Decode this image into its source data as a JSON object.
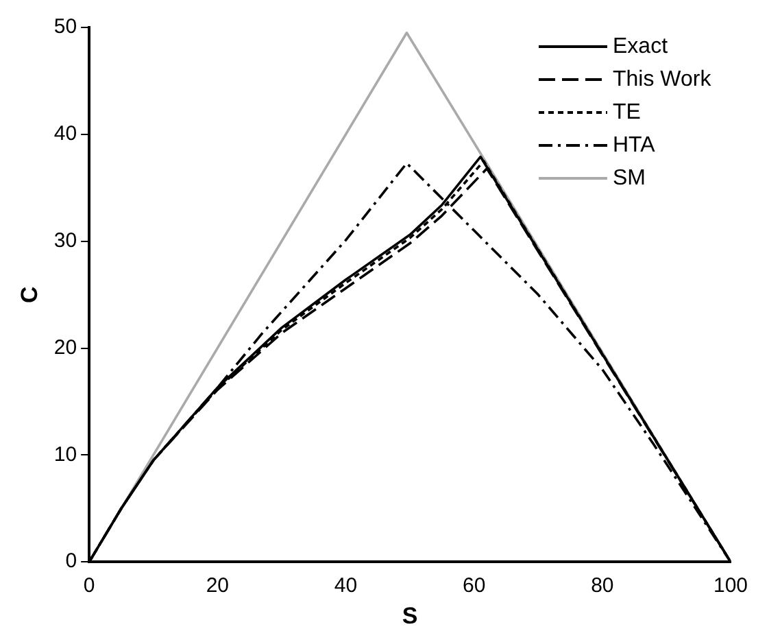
{
  "chart_data": {
    "type": "line",
    "xlabel": "S",
    "ylabel": "C",
    "xlim": [
      0,
      100
    ],
    "ylim": [
      0,
      50
    ],
    "xticks": [
      0,
      20,
      40,
      60,
      80,
      100
    ],
    "yticks": [
      0,
      10,
      20,
      30,
      40,
      50
    ],
    "grid": false,
    "legend": "top right",
    "marker": "none",
    "series": [
      {
        "name": "Exact",
        "color": "#000000",
        "line_style": "solid",
        "x": [
          0,
          5,
          10,
          20,
          30,
          40,
          50,
          55,
          61,
          100
        ],
        "values": [
          0,
          5,
          9.5,
          16.3,
          21.9,
          26.4,
          30.6,
          33.4,
          37.9,
          0
        ]
      },
      {
        "name": "This Work",
        "color": "#000000",
        "line_style": "dashed",
        "x": [
          0,
          5,
          10,
          20,
          30,
          40,
          50,
          55,
          62,
          100
        ],
        "values": [
          0,
          5,
          9.5,
          16.1,
          21.4,
          25.6,
          29.8,
          32.4,
          36.8,
          0
        ]
      },
      {
        "name": "TE",
        "color": "#000000",
        "line_style": "dotted",
        "x": [
          0,
          5,
          10,
          20,
          30,
          40,
          50,
          55,
          61.5,
          100
        ],
        "values": [
          0,
          5,
          9.5,
          16.2,
          21.7,
          26.1,
          30.3,
          33,
          37.5,
          0
        ]
      },
      {
        "name": "HTA",
        "color": "#000000",
        "line_style": "dashdot",
        "x": [
          0,
          5,
          10,
          20,
          27,
          40,
          49.5,
          60,
          70,
          80,
          88,
          100
        ],
        "values": [
          0,
          5,
          9.5,
          16.3,
          21.4,
          30.1,
          37.3,
          31,
          25,
          18,
          11,
          0
        ]
      },
      {
        "name": "SM",
        "color": "#aaaaaa",
        "line_style": "solid",
        "x": [
          0,
          49.5,
          100
        ],
        "values": [
          0,
          49.5,
          0
        ]
      }
    ]
  }
}
